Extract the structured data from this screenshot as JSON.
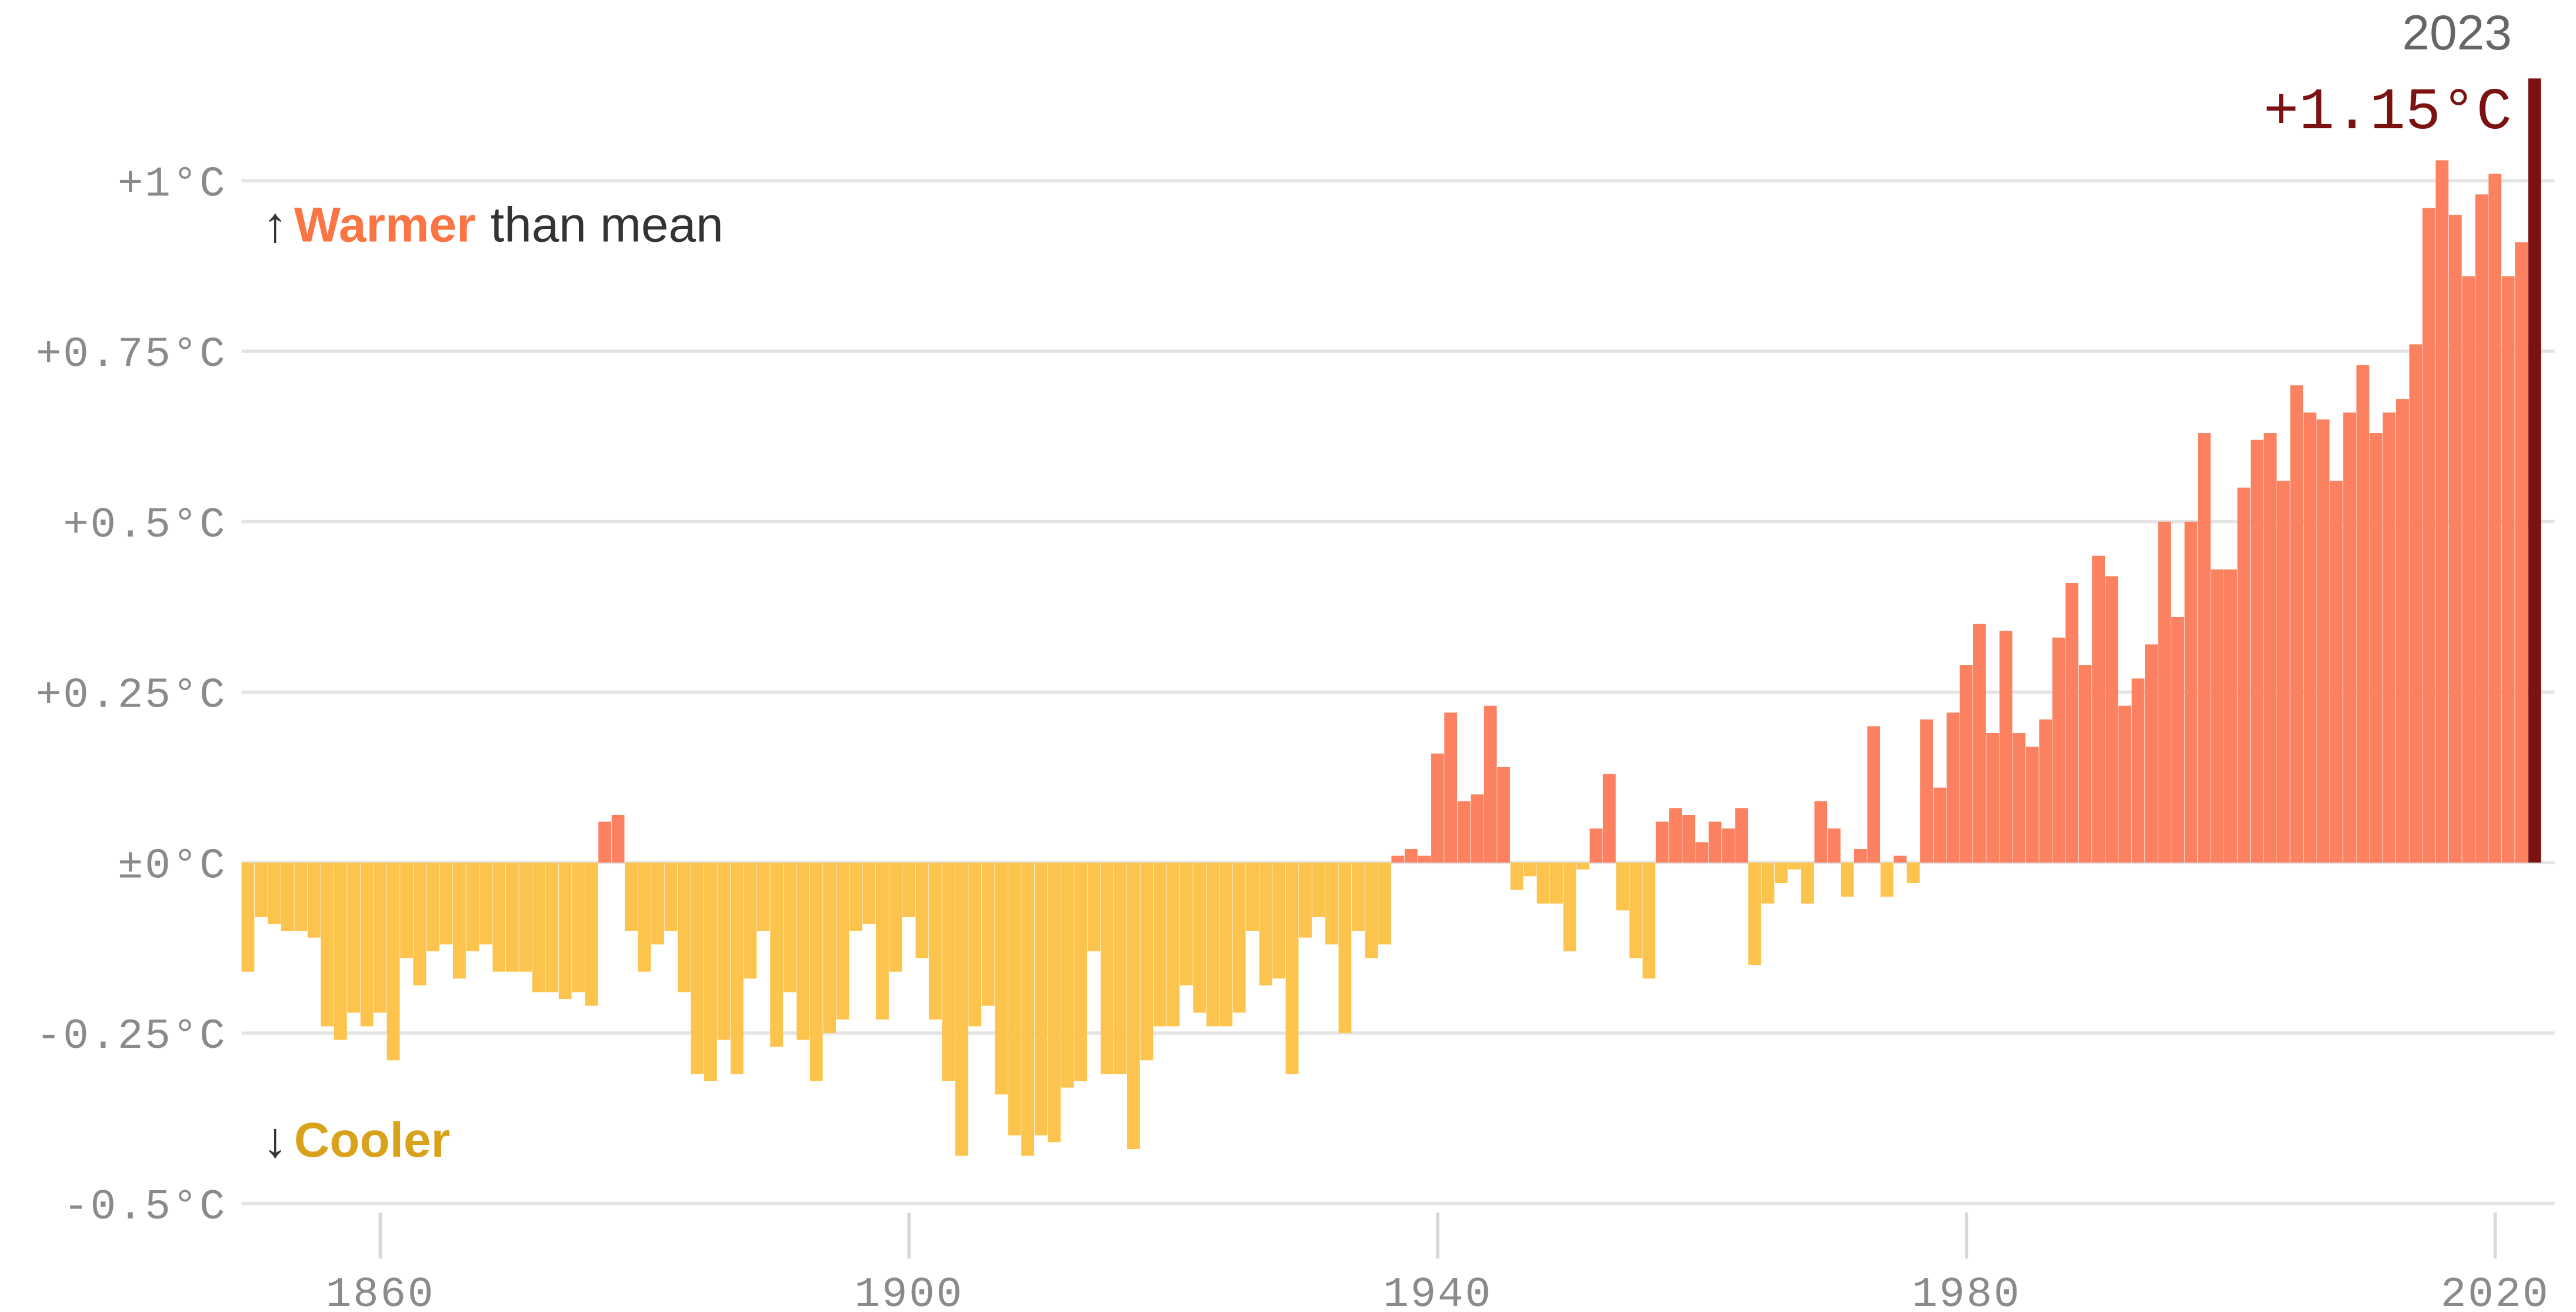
{
  "chart_data": {
    "type": "bar",
    "x": [
      1850,
      1851,
      1852,
      1853,
      1854,
      1855,
      1856,
      1857,
      1858,
      1859,
      1860,
      1861,
      1862,
      1863,
      1864,
      1865,
      1866,
      1867,
      1868,
      1869,
      1870,
      1871,
      1872,
      1873,
      1874,
      1875,
      1876,
      1877,
      1878,
      1879,
      1880,
      1881,
      1882,
      1883,
      1884,
      1885,
      1886,
      1887,
      1888,
      1889,
      1890,
      1891,
      1892,
      1893,
      1894,
      1895,
      1896,
      1897,
      1898,
      1899,
      1900,
      1901,
      1902,
      1903,
      1904,
      1905,
      1906,
      1907,
      1908,
      1909,
      1910,
      1911,
      1912,
      1913,
      1914,
      1915,
      1916,
      1917,
      1918,
      1919,
      1920,
      1921,
      1922,
      1923,
      1924,
      1925,
      1926,
      1927,
      1928,
      1929,
      1930,
      1931,
      1932,
      1933,
      1934,
      1935,
      1936,
      1937,
      1938,
      1939,
      1940,
      1941,
      1942,
      1943,
      1944,
      1945,
      1946,
      1947,
      1948,
      1949,
      1950,
      1951,
      1952,
      1953,
      1954,
      1955,
      1956,
      1957,
      1958,
      1959,
      1960,
      1961,
      1962,
      1963,
      1964,
      1965,
      1966,
      1967,
      1968,
      1969,
      1970,
      1971,
      1972,
      1973,
      1974,
      1975,
      1976,
      1977,
      1978,
      1979,
      1980,
      1981,
      1982,
      1983,
      1984,
      1985,
      1986,
      1987,
      1988,
      1989,
      1990,
      1991,
      1992,
      1993,
      1994,
      1995,
      1996,
      1997,
      1998,
      1999,
      2000,
      2001,
      2002,
      2003,
      2004,
      2005,
      2006,
      2007,
      2008,
      2009,
      2010,
      2011,
      2012,
      2013,
      2014,
      2015,
      2016,
      2017,
      2018,
      2019,
      2020,
      2021,
      2022,
      2023
    ],
    "values": [
      -0.16,
      -0.08,
      -0.09,
      -0.1,
      -0.1,
      -0.11,
      -0.24,
      -0.26,
      -0.22,
      -0.24,
      -0.22,
      -0.29,
      -0.14,
      -0.18,
      -0.13,
      -0.12,
      -0.17,
      -0.13,
      -0.12,
      -0.16,
      -0.16,
      -0.16,
      -0.19,
      -0.19,
      -0.2,
      -0.19,
      -0.21,
      0.06,
      0.07,
      -0.1,
      -0.16,
      -0.12,
      -0.1,
      -0.19,
      -0.31,
      -0.32,
      -0.26,
      -0.31,
      -0.17,
      -0.1,
      -0.27,
      -0.19,
      -0.26,
      -0.32,
      -0.25,
      -0.23,
      -0.1,
      -0.09,
      -0.23,
      -0.16,
      -0.08,
      -0.14,
      -0.23,
      -0.32,
      -0.43,
      -0.24,
      -0.21,
      -0.34,
      -0.4,
      -0.43,
      -0.4,
      -0.41,
      -0.33,
      -0.32,
      -0.13,
      -0.31,
      -0.31,
      -0.42,
      -0.29,
      -0.24,
      -0.24,
      -0.18,
      -0.22,
      -0.24,
      -0.24,
      -0.22,
      -0.1,
      -0.18,
      -0.17,
      -0.31,
      -0.11,
      -0.08,
      -0.12,
      -0.25,
      -0.1,
      -0.14,
      -0.12,
      0.01,
      0.02,
      0.01,
      0.16,
      0.22,
      0.09,
      0.1,
      0.23,
      0.14,
      -0.04,
      -0.02,
      -0.06,
      -0.06,
      -0.13,
      -0.01,
      0.05,
      0.13,
      -0.07,
      -0.14,
      -0.17,
      0.06,
      0.08,
      0.07,
      0.03,
      0.06,
      0.05,
      0.08,
      -0.15,
      -0.06,
      -0.03,
      -0.01,
      -0.06,
      0.09,
      0.05,
      -0.05,
      0.02,
      0.2,
      -0.05,
      0.01,
      -0.03,
      0.21,
      0.11,
      0.22,
      0.29,
      0.35,
      0.19,
      0.34,
      0.19,
      0.17,
      0.21,
      0.33,
      0.41,
      0.29,
      0.45,
      0.42,
      0.23,
      0.27,
      0.32,
      0.5,
      0.36,
      0.5,
      0.63,
      0.43,
      0.43,
      0.55,
      0.62,
      0.63,
      0.56,
      0.7,
      0.66,
      0.65,
      0.56,
      0.66,
      0.73,
      0.63,
      0.66,
      0.68,
      0.76,
      0.96,
      1.03,
      0.95,
      0.86,
      0.98,
      1.01,
      0.86,
      0.91,
      1.15
    ],
    "value_labels": [
      null,
      null,
      null,
      null,
      null,
      null,
      null,
      null,
      null,
      null,
      null,
      null,
      null,
      null,
      null,
      null,
      null,
      null,
      null,
      null,
      null,
      null,
      null,
      null,
      null,
      null,
      null,
      null,
      null,
      null,
      null,
      null,
      null,
      null,
      null,
      null,
      null,
      null,
      null,
      null,
      null,
      null,
      null,
      null,
      null,
      null,
      null,
      null,
      null,
      null,
      null,
      null,
      null,
      null,
      null,
      null,
      null,
      null,
      null,
      null,
      null,
      null,
      null,
      null,
      null,
      null,
      null,
      null,
      null,
      null,
      null,
      null,
      null,
      null,
      null,
      null,
      null,
      null,
      null,
      null,
      null,
      null,
      null,
      null,
      null,
      null,
      null,
      null,
      null,
      null,
      null,
      null,
      null,
      null,
      null,
      null,
      null,
      null,
      null,
      null,
      null,
      null,
      null,
      null,
      null,
      null,
      null,
      null,
      null,
      null,
      null,
      null,
      null,
      null,
      null,
      null,
      null,
      null,
      null,
      null,
      null,
      null,
      null,
      null,
      null,
      null,
      null,
      null,
      null,
      null,
      null,
      null,
      null,
      null,
      null,
      null,
      null,
      null,
      null,
      null,
      null,
      null,
      null,
      null,
      null,
      null,
      null,
      null,
      null,
      null,
      null,
      null,
      null,
      null,
      null,
      null,
      null,
      null,
      null,
      null,
      null,
      null,
      null,
      null,
      null,
      null,
      null,
      null,
      null,
      null,
      null,
      null,
      null,
      "+1.15°C"
    ],
    "positive_color": "#fb8160",
    "negative_color": "#fcc34d",
    "highlight_color": "#7b1111",
    "xlim": [
      1849.5,
      2024.5
    ],
    "xticks": [
      1860,
      1900,
      1940,
      1980,
      2020
    ],
    "ylim": [
      -0.55,
      1.25
    ],
    "yticks": [
      {
        "value": 1,
        "label": "+1°C"
      },
      {
        "value": 0.75,
        "label": "+0.75°C"
      },
      {
        "value": 0.5,
        "label": "+0.5°C"
      },
      {
        "value": 0.25,
        "label": "+0.25°C"
      },
      {
        "value": 0,
        "label": "±0°C"
      },
      {
        "value": -0.25,
        "label": "-0.25°C"
      },
      {
        "value": -0.5,
        "label": "-0.5°C"
      }
    ],
    "grid": true,
    "annotations": [
      {
        "arrow": "↑",
        "highlight": "Warmer",
        "text": "than mean",
        "color": "#fb7443"
      },
      {
        "arrow": "↓",
        "highlight": "Cooler",
        "color": "#d9a21b"
      }
    ]
  }
}
